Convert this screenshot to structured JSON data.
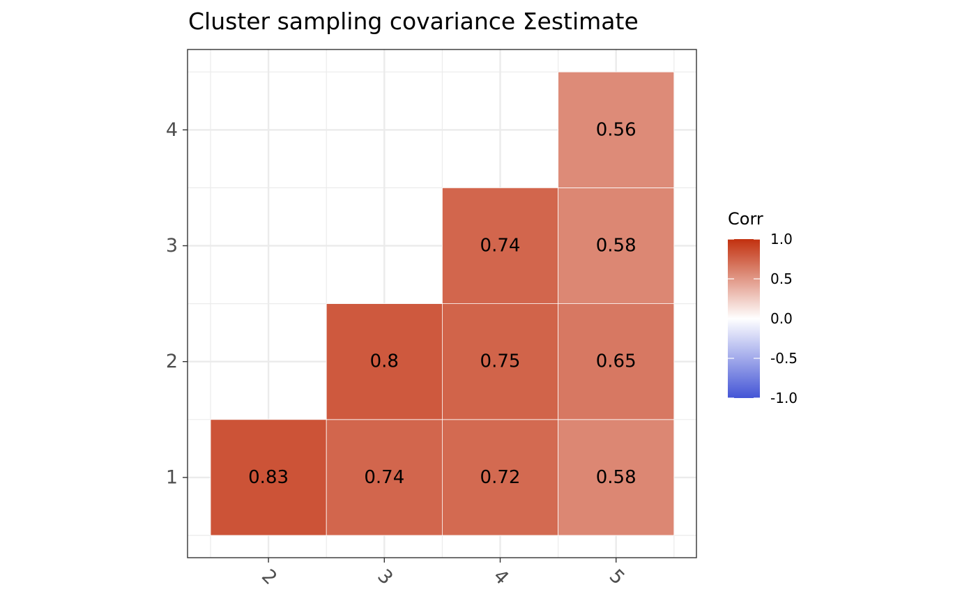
{
  "chart_data": {
    "type": "heatmap",
    "title": "Cluster sampling covariance Σestimate",
    "x_categories": [
      "2",
      "3",
      "4",
      "5"
    ],
    "y_categories": [
      "1",
      "2",
      "3",
      "4"
    ],
    "cells": [
      {
        "x": "2",
        "y": "1",
        "value": 0.83,
        "label": "0.83"
      },
      {
        "x": "3",
        "y": "1",
        "value": 0.74,
        "label": "0.74"
      },
      {
        "x": "4",
        "y": "1",
        "value": 0.72,
        "label": "0.72"
      },
      {
        "x": "5",
        "y": "1",
        "value": 0.58,
        "label": "0.58"
      },
      {
        "x": "3",
        "y": "2",
        "value": 0.8,
        "label": "0.8"
      },
      {
        "x": "4",
        "y": "2",
        "value": 0.75,
        "label": "0.75"
      },
      {
        "x": "5",
        "y": "2",
        "value": 0.65,
        "label": "0.65"
      },
      {
        "x": "4",
        "y": "3",
        "value": 0.74,
        "label": "0.74"
      },
      {
        "x": "5",
        "y": "3",
        "value": 0.58,
        "label": "0.58"
      },
      {
        "x": "5",
        "y": "4",
        "value": 0.56,
        "label": "0.56"
      }
    ],
    "x_tick_rotation": "45deg",
    "grid": true,
    "legend": {
      "title": "Corr",
      "placement": "right",
      "range": [
        -1,
        1
      ],
      "ticks": [
        1.0,
        0.5,
        0.0,
        -0.5,
        -1.0
      ],
      "tick_labels": [
        "1.0",
        "0.5",
        "0.0",
        "-0.5",
        "-1.0"
      ],
      "low_color": "#4455d6",
      "mid_color": "#ffffff",
      "high_color": "#c2300e"
    }
  }
}
